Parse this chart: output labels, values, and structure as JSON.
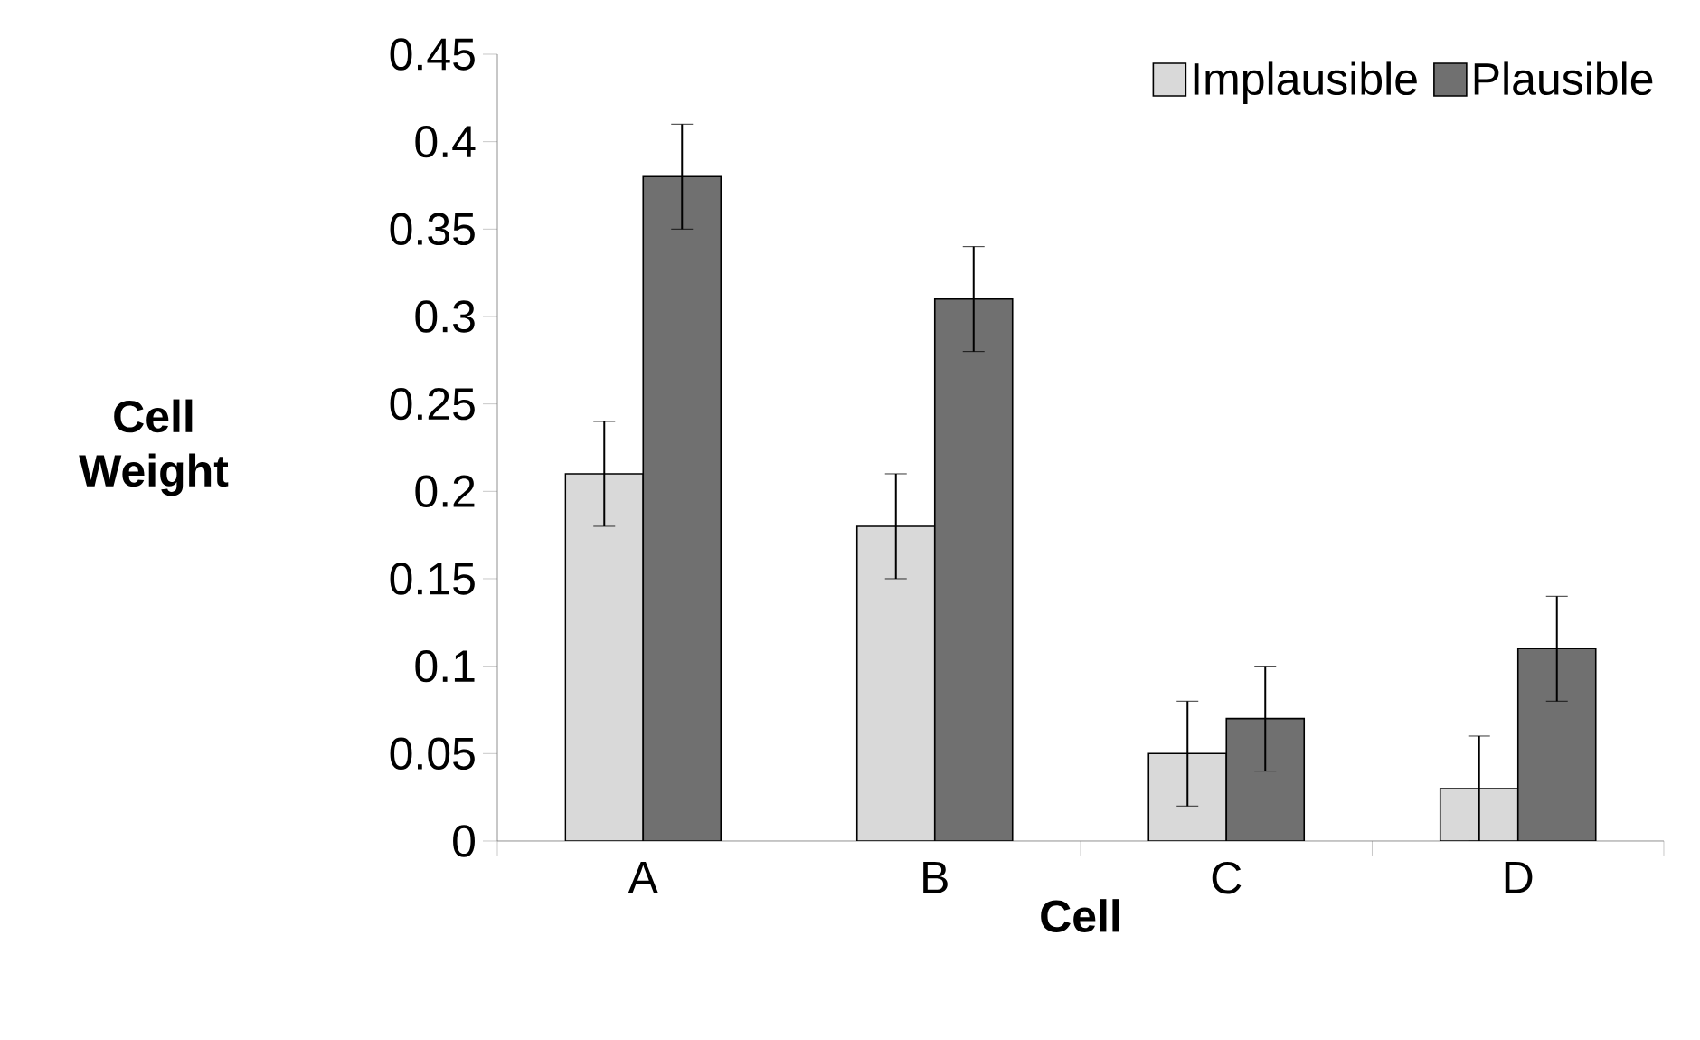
{
  "chart_data": {
    "type": "bar",
    "xlabel": "Cell",
    "ylabel": "Cell Weight",
    "categories": [
      "A",
      "B",
      "C",
      "D"
    ],
    "series": [
      {
        "name": "Implausible",
        "color": "#d9d9d9",
        "values": [
          0.21,
          0.18,
          0.05,
          0.03
        ],
        "errors": [
          0.03,
          0.03,
          0.03,
          0.03
        ]
      },
      {
        "name": "Plausible",
        "color": "#707070",
        "values": [
          0.38,
          0.31,
          0.07,
          0.11
        ],
        "errors": [
          0.03,
          0.03,
          0.03,
          0.03
        ]
      }
    ],
    "ylim": [
      0,
      0.45
    ],
    "yticks": [
      0,
      0.05,
      0.1,
      0.15,
      0.2,
      0.25,
      0.3,
      0.35,
      0.4,
      0.45
    ],
    "grid": false,
    "legend": "top right"
  }
}
